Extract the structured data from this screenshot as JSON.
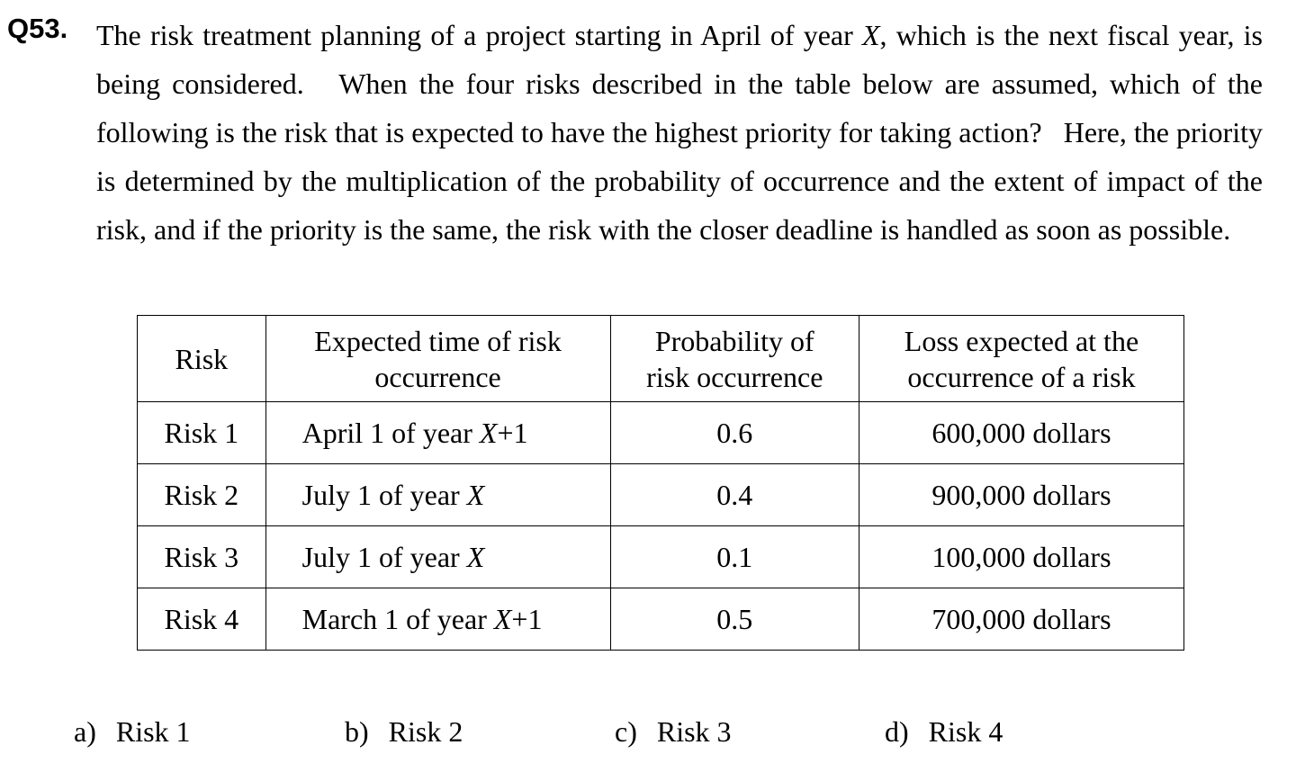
{
  "question": {
    "number": "Q53.",
    "text_parts": [
      {
        "t": "The risk treatment planning of a project starting in April of year "
      },
      {
        "t": "X",
        "italic": true
      },
      {
        "t": ", which is the next fiscal year, is being considered.   When the four risks described in the table below are assumed, which of the following is the risk that is expected to have the highest priority for taking action?   Here, the priority is determined by the multiplication of the probability of occurrence and the extent of impact of the risk, and if the priority is the same, the risk with the closer deadline is handled as soon as possible."
      }
    ]
  },
  "table": {
    "headers": {
      "risk": "Risk",
      "time_line1": "Expected time of risk",
      "time_line2": "occurrence",
      "prob_line1": "Probability of",
      "prob_line2": "risk occurrence",
      "loss_line1": "Loss expected at the",
      "loss_line2": "occurrence of a risk"
    },
    "rows": [
      {
        "risk": "Risk 1",
        "time_a": "April 1 of year ",
        "time_var": "X",
        "time_b": "+1",
        "prob": "0.6",
        "loss": "600,000 dollars"
      },
      {
        "risk": "Risk 2",
        "time_a": "July 1 of year ",
        "time_var": "X",
        "time_b": "",
        "prob": "0.4",
        "loss": "900,000 dollars"
      },
      {
        "risk": "Risk 3",
        "time_a": "July 1 of year ",
        "time_var": "X",
        "time_b": "",
        "prob": "0.1",
        "loss": "100,000 dollars"
      },
      {
        "risk": "Risk 4",
        "time_a": "March 1 of year ",
        "time_var": "X",
        "time_b": "+1",
        "prob": "0.5",
        "loss": "700,000 dollars"
      }
    ]
  },
  "answers": [
    {
      "letter": "a)",
      "label": "Risk 1"
    },
    {
      "letter": "b)",
      "label": "Risk 2"
    },
    {
      "letter": "c)",
      "label": "Risk 3"
    },
    {
      "letter": "d)",
      "label": "Risk 4"
    }
  ]
}
